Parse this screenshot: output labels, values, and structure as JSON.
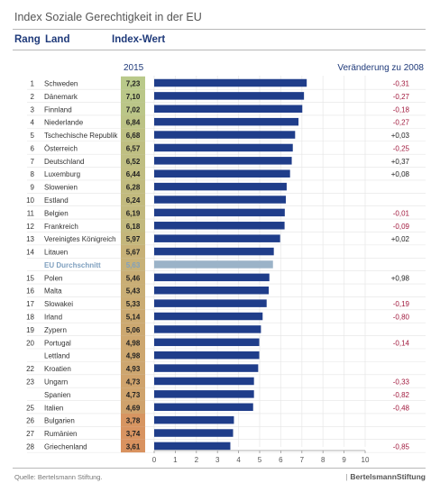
{
  "title": "Index Soziale Gerechtigkeit in der EU",
  "headers": {
    "rank": "Rang",
    "country": "Land",
    "index": "Index-Wert"
  },
  "year_label": "2015",
  "change_header": "Veränderung zu 2008",
  "footer": {
    "source": "Quelle: Bertelsmann Stiftung.",
    "logo_text": "BertelsmannStiftung"
  },
  "colors": {
    "bar": "#1f3d8a",
    "avg_bar": "#9bb3c8",
    "avg_text": "#7fa0bf",
    "negative": "#a1193d",
    "positive": "#222222",
    "index_high": "#b9c98a",
    "index_low": "#d9925f"
  },
  "chart_data": {
    "type": "bar",
    "orientation": "horizontal",
    "xlim": [
      0,
      10
    ],
    "xticks": [
      "0",
      "1",
      "2",
      "3",
      "4",
      "5",
      "6",
      "7",
      "8",
      "9",
      "10"
    ],
    "rows": [
      {
        "rank": "1",
        "country": "Schweden",
        "index": "7,23",
        "value": 7.23,
        "change": "-0,31"
      },
      {
        "rank": "2",
        "country": "Dänemark",
        "index": "7,10",
        "value": 7.1,
        "change": "-0,27"
      },
      {
        "rank": "3",
        "country": "Finnland",
        "index": "7,02",
        "value": 7.02,
        "change": "-0,18"
      },
      {
        "rank": "4",
        "country": "Niederlande",
        "index": "6,84",
        "value": 6.84,
        "change": "-0,27"
      },
      {
        "rank": "5",
        "country": "Tschechische Republik",
        "index": "6,68",
        "value": 6.68,
        "change": "+0,03"
      },
      {
        "rank": "6",
        "country": "Österreich",
        "index": "6,57",
        "value": 6.57,
        "change": "-0,25"
      },
      {
        "rank": "7",
        "country": "Deutschland",
        "index": "6,52",
        "value": 6.52,
        "change": "+0,37"
      },
      {
        "rank": "8",
        "country": "Luxemburg",
        "index": "6,44",
        "value": 6.44,
        "change": "+0,08"
      },
      {
        "rank": "9",
        "country": "Slowenien",
        "index": "6,28",
        "value": 6.28,
        "change": ""
      },
      {
        "rank": "10",
        "country": "Estland",
        "index": "6,24",
        "value": 6.24,
        "change": ""
      },
      {
        "rank": "11",
        "country": "Belgien",
        "index": "6,19",
        "value": 6.19,
        "change": "-0,01"
      },
      {
        "rank": "12",
        "country": "Frankreich",
        "index": "6,18",
        "value": 6.18,
        "change": "-0,09"
      },
      {
        "rank": "13",
        "country": "Vereinigtes Königreich",
        "index": "5,97",
        "value": 5.97,
        "change": "+0,02"
      },
      {
        "rank": "14",
        "country": "Litauen",
        "index": "5,67",
        "value": 5.67,
        "change": ""
      },
      {
        "rank": "",
        "country": "EU Durchschnitt",
        "index": "5,63",
        "value": 5.63,
        "change": "",
        "average": true
      },
      {
        "rank": "15",
        "country": "Polen",
        "index": "5,46",
        "value": 5.46,
        "change": "+0,98"
      },
      {
        "rank": "16",
        "country": "Malta",
        "index": "5,43",
        "value": 5.43,
        "change": ""
      },
      {
        "rank": "17",
        "country": "Slowakei",
        "index": "5,33",
        "value": 5.33,
        "change": "-0,19"
      },
      {
        "rank": "18",
        "country": "Irland",
        "index": "5,14",
        "value": 5.14,
        "change": "-0,80"
      },
      {
        "rank": "19",
        "country": "Zypern",
        "index": "5,06",
        "value": 5.06,
        "change": ""
      },
      {
        "rank": "20",
        "country": "Portugal",
        "index": "4,98",
        "value": 4.98,
        "change": "-0,14"
      },
      {
        "rank": "",
        "country": "Lettland",
        "index": "4,98",
        "value": 4.98,
        "change": ""
      },
      {
        "rank": "22",
        "country": "Kroatien",
        "index": "4,93",
        "value": 4.93,
        "change": ""
      },
      {
        "rank": "23",
        "country": "Ungarn",
        "index": "4,73",
        "value": 4.73,
        "change": "-0,33"
      },
      {
        "rank": "",
        "country": "Spanien",
        "index": "4,73",
        "value": 4.73,
        "change": "-0,82"
      },
      {
        "rank": "25",
        "country": "Italien",
        "index": "4,69",
        "value": 4.69,
        "change": "-0,48"
      },
      {
        "rank": "26",
        "country": "Bulgarien",
        "index": "3,78",
        "value": 3.78,
        "change": ""
      },
      {
        "rank": "27",
        "country": "Rumänien",
        "index": "3,74",
        "value": 3.74,
        "change": ""
      },
      {
        "rank": "28",
        "country": "Griechenland",
        "index": "3,61",
        "value": 3.61,
        "change": "-0,85"
      }
    ]
  }
}
